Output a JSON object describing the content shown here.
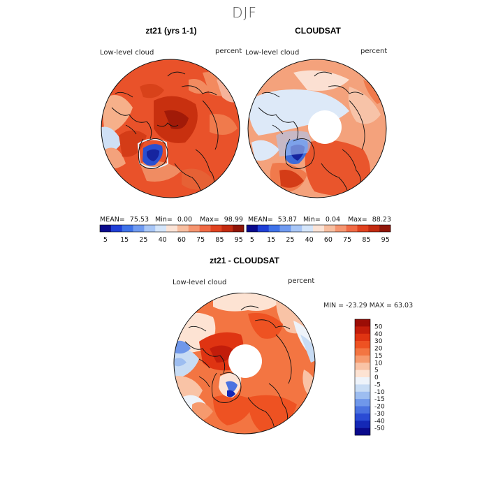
{
  "title": "DJF",
  "panels": [
    {
      "title": "zt21 (yrs 1-1)",
      "variable": "Low-level cloud",
      "units": "percent",
      "stats": {
        "mean_label": "MEAN=",
        "mean": "75.53",
        "min_label": "Min=",
        "min": "0.00",
        "max_label": "Max=",
        "max": "98.99"
      }
    },
    {
      "title": "CLOUDSAT",
      "variable": "Low-level cloud",
      "units": "percent",
      "stats": {
        "mean_label": "MEAN=",
        "mean": "53.87",
        "min_label": "Min=",
        "min": "0.04",
        "max_label": "Max=",
        "max": "88.23"
      }
    }
  ],
  "diff_panel": {
    "title": "zt21 - CLOUDSAT",
    "variable": "Low-level cloud",
    "units": "percent",
    "minmax": "MIN = -23.29 MAX =  63.03"
  },
  "abs_colorbar": {
    "tick_labels": [
      "5",
      "15",
      "25",
      "40",
      "60",
      "75",
      "85",
      "95"
    ],
    "colors": [
      "#0a0a8c",
      "#1f3fd6",
      "#3f72e8",
      "#6f9af0",
      "#a8c6f6",
      "#d4e5fa",
      "#fbe3d6",
      "#f7bea0",
      "#f59570",
      "#f06a45",
      "#e0421f",
      "#c22a10",
      "#8f1508"
    ]
  },
  "diff_colorbar": {
    "tick_labels": [
      "50",
      "40",
      "30",
      "20",
      "15",
      "10",
      "5",
      "0",
      "-5",
      "-10",
      "-15",
      "-20",
      "-30",
      "-40",
      "-50"
    ],
    "colors": [
      "#9b0d06",
      "#c21d0b",
      "#df3412",
      "#ee5222",
      "#f37542",
      "#f69a6e",
      "#f9c3a6",
      "#fde3d3",
      "#eef3fa",
      "#c8dcf4",
      "#9dbdf0",
      "#6f97ea",
      "#4a72e0",
      "#2a4bd4",
      "#1428b6",
      "#0a0a8c"
    ]
  }
}
